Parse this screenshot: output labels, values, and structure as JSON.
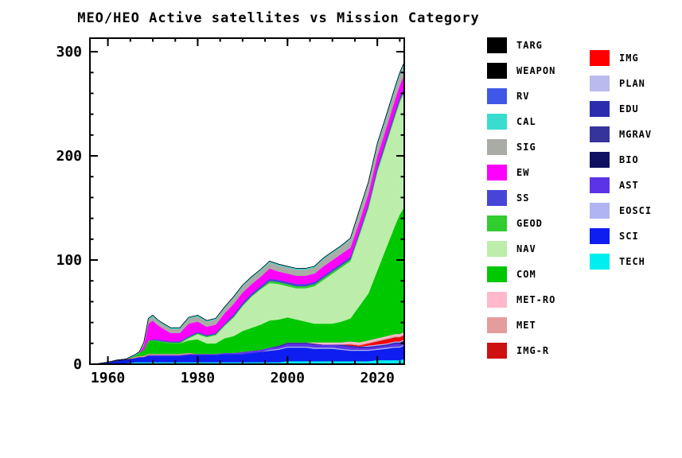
{
  "chart_data": {
    "type": "area",
    "stacked": true,
    "title": "MEO/HEO Active satellites vs Mission Category",
    "xlabel": "",
    "ylabel": "",
    "xlim": [
      1956,
      2026
    ],
    "ylim": [
      0,
      313
    ],
    "xticks": [
      1960,
      1980,
      2000,
      2020
    ],
    "xminor": 5,
    "yticks": [
      0,
      100,
      200,
      300
    ],
    "yminor": 20,
    "grid": false,
    "legend_position": "right",
    "x": [
      1957,
      1960,
      1962,
      1964,
      1966,
      1967,
      1968,
      1969,
      1970,
      1971,
      1972,
      1974,
      1976,
      1978,
      1980,
      1982,
      1984,
      1986,
      1988,
      1990,
      1992,
      1994,
      1996,
      1998,
      2000,
      2002,
      2004,
      2006,
      2008,
      2010,
      2012,
      2014,
      2016,
      2018,
      2020,
      2022,
      2024,
      2025,
      2026
    ],
    "series": [
      {
        "name": "TECH",
        "color": "#00eeee",
        "values": [
          0,
          1,
          1,
          1,
          2,
          2,
          2,
          2,
          2,
          2,
          2,
          2,
          2,
          2,
          2,
          2,
          2,
          2,
          2,
          2,
          2,
          2,
          2,
          2,
          3,
          3,
          3,
          3,
          3,
          3,
          3,
          3,
          3,
          3,
          4,
          4,
          4,
          4,
          5
        ]
      },
      {
        "name": "SCI",
        "color": "#0e1ef0",
        "values": [
          0,
          1,
          2,
          3,
          4,
          5,
          5,
          6,
          6,
          6,
          6,
          6,
          6,
          7,
          7,
          7,
          7,
          8,
          8,
          8,
          9,
          10,
          11,
          12,
          13,
          13,
          13,
          12,
          12,
          12,
          11,
          10,
          10,
          10,
          10,
          11,
          12,
          12,
          13
        ]
      },
      {
        "name": "EOSCI",
        "color": "#b0b4f2",
        "values": [
          0,
          0,
          0,
          0,
          0,
          0,
          0,
          0,
          0,
          0,
          0,
          0,
          0,
          0,
          0,
          0,
          0,
          0,
          0,
          0,
          0,
          0,
          1,
          1,
          1,
          1,
          1,
          1,
          1,
          1,
          1,
          1,
          1,
          1,
          1,
          1,
          1,
          1,
          1
        ]
      },
      {
        "name": "AST",
        "color": "#5c33e6",
        "values": [
          0,
          0,
          0,
          0,
          0,
          0,
          0,
          1,
          1,
          1,
          1,
          1,
          1,
          1,
          1,
          1,
          1,
          1,
          1,
          2,
          2,
          2,
          2,
          2,
          3,
          3,
          3,
          3,
          3,
          3,
          3,
          3,
          2,
          2,
          2,
          2,
          3,
          3,
          3
        ]
      },
      {
        "name": "BIO",
        "color": "#101060",
        "values": [
          0,
          0,
          1,
          1,
          0,
          0,
          0,
          0,
          0,
          0,
          0,
          0,
          0,
          0,
          0,
          0,
          0,
          0,
          0,
          0,
          0,
          0,
          0,
          0,
          0,
          0,
          0,
          0,
          0,
          0,
          0,
          0,
          0,
          0,
          0,
          0,
          0,
          0,
          0
        ]
      },
      {
        "name": "MGRAV",
        "color": "#34349c",
        "values": [
          0,
          0,
          0,
          0,
          0,
          0,
          0,
          0,
          0,
          0,
          0,
          0,
          0,
          0,
          0,
          0,
          0,
          0,
          0,
          0,
          0,
          0,
          0,
          1,
          1,
          1,
          1,
          1,
          0,
          0,
          0,
          0,
          0,
          0,
          0,
          0,
          0,
          0,
          0
        ]
      },
      {
        "name": "EDU",
        "color": "#2c2cae",
        "values": [
          0,
          0,
          0,
          0,
          0,
          0,
          0,
          0,
          0,
          0,
          0,
          0,
          0,
          0,
          0,
          0,
          0,
          0,
          0,
          0,
          0,
          0,
          0,
          0,
          0,
          0,
          0,
          0,
          0,
          0,
          1,
          1,
          1,
          1,
          1,
          1,
          1,
          1,
          1
        ]
      },
      {
        "name": "PLAN",
        "color": "#babaee",
        "values": [
          0,
          0,
          0,
          0,
          0,
          0,
          0,
          0,
          0,
          0,
          0,
          0,
          0,
          0,
          0,
          0,
          0,
          0,
          0,
          0,
          0,
          0,
          0,
          0,
          0,
          0,
          0,
          0,
          0,
          0,
          0,
          0,
          0,
          1,
          1,
          1,
          1,
          1,
          1
        ]
      },
      {
        "name": "IMG",
        "color": "#ff0000",
        "values": [
          0,
          0,
          0,
          0,
          0,
          0,
          0,
          0,
          0,
          0,
          0,
          0,
          0,
          0,
          0,
          0,
          0,
          0,
          0,
          0,
          0,
          0,
          0,
          0,
          0,
          0,
          0,
          0,
          0,
          0,
          0,
          1,
          1,
          2,
          2,
          3,
          3,
          3,
          3
        ]
      },
      {
        "name": "IMG-R",
        "color": "#cf1010",
        "values": [
          0,
          0,
          0,
          0,
          0,
          0,
          0,
          0,
          0,
          0,
          0,
          0,
          0,
          0,
          0,
          0,
          0,
          0,
          0,
          0,
          0,
          0,
          0,
          0,
          0,
          0,
          0,
          0,
          0,
          0,
          0,
          0,
          0,
          0,
          1,
          1,
          1,
          1,
          1
        ]
      },
      {
        "name": "MET",
        "color": "#e49c9c",
        "values": [
          0,
          0,
          0,
          0,
          1,
          1,
          1,
          1,
          1,
          1,
          1,
          1,
          1,
          1,
          0,
          0,
          0,
          0,
          0,
          0,
          0,
          0,
          0,
          0,
          0,
          0,
          0,
          0,
          0,
          0,
          0,
          1,
          1,
          1,
          1,
          1,
          1,
          1,
          1
        ]
      },
      {
        "name": "MET-RO",
        "color": "#ffb8cc",
        "values": [
          0,
          0,
          0,
          0,
          0,
          0,
          0,
          0,
          0,
          0,
          0,
          0,
          0,
          0,
          0,
          0,
          0,
          0,
          0,
          0,
          0,
          0,
          0,
          0,
          0,
          0,
          0,
          1,
          2,
          2,
          2,
          2,
          2,
          2,
          2,
          2,
          2,
          2,
          2
        ]
      },
      {
        "name": "COM",
        "color": "#00c800",
        "values": [
          0,
          0,
          0,
          0,
          1,
          3,
          6,
          12,
          12,
          12,
          11,
          10,
          10,
          12,
          14,
          10,
          10,
          14,
          16,
          20,
          22,
          24,
          26,
          25,
          24,
          22,
          20,
          18,
          18,
          18,
          20,
          22,
          35,
          45,
          65,
          85,
          105,
          115,
          120
        ]
      },
      {
        "name": "NAV",
        "color": "#bcedaa",
        "values": [
          0,
          0,
          0,
          0,
          0,
          0,
          0,
          0,
          0,
          0,
          0,
          0,
          0,
          2,
          5,
          6,
          8,
          12,
          18,
          24,
          30,
          34,
          36,
          34,
          30,
          30,
          32,
          36,
          42,
          48,
          52,
          55,
          68,
          82,
          95,
          100,
          105,
          108,
          110
        ]
      },
      {
        "name": "GEOD",
        "color": "#30cc30",
        "values": [
          0,
          0,
          0,
          0,
          0,
          0,
          0,
          1,
          1,
          1,
          1,
          1,
          1,
          1,
          1,
          1,
          1,
          1,
          1,
          1,
          1,
          1,
          2,
          2,
          2,
          2,
          2,
          2,
          2,
          2,
          2,
          2,
          2,
          2,
          2,
          2,
          2,
          2,
          2
        ]
      },
      {
        "name": "SS",
        "color": "#4745d8",
        "values": [
          0,
          0,
          0,
          0,
          0,
          0,
          0,
          0,
          1,
          1,
          1,
          1,
          1,
          1,
          1,
          1,
          1,
          1,
          2,
          2,
          2,
          2,
          2,
          2,
          2,
          2,
          2,
          2,
          2,
          2,
          2,
          2,
          2,
          2,
          3,
          3,
          3,
          3,
          3
        ]
      },
      {
        "name": "EW",
        "color": "#ff00ff",
        "values": [
          0,
          0,
          0,
          0,
          0,
          0,
          4,
          16,
          18,
          14,
          12,
          8,
          8,
          12,
          10,
          8,
          8,
          10,
          10,
          10,
          9,
          9,
          10,
          8,
          8,
          8,
          8,
          8,
          9,
          9,
          9,
          9,
          9,
          10,
          10,
          10,
          11,
          11,
          12
        ]
      },
      {
        "name": "SIG",
        "color": "#a9aca6",
        "values": [
          0,
          0,
          0,
          0,
          0,
          0,
          2,
          4,
          4,
          4,
          4,
          4,
          4,
          5,
          5,
          5,
          5,
          5,
          6,
          6,
          6,
          6,
          6,
          6,
          6,
          6,
          6,
          6,
          7,
          7,
          7,
          8,
          10,
          10,
          10,
          10,
          10,
          10,
          10
        ]
      },
      {
        "name": "CAL",
        "color": "#38ddcf",
        "values": [
          0,
          0,
          0,
          0,
          1,
          1,
          1,
          1,
          1,
          1,
          1,
          1,
          1,
          1,
          1,
          1,
          1,
          1,
          1,
          1,
          1,
          1,
          1,
          1,
          1,
          1,
          1,
          1,
          1,
          1,
          1,
          1,
          1,
          1,
          2,
          2,
          2,
          2,
          2
        ]
      },
      {
        "name": "RV",
        "color": "#3f58e8",
        "values": [
          0,
          0,
          0,
          0,
          0,
          0,
          0,
          0,
          0,
          0,
          0,
          0,
          0,
          0,
          0,
          0,
          0,
          0,
          0,
          0,
          0,
          0,
          0,
          0,
          0,
          0,
          0,
          0,
          0,
          0,
          0,
          0,
          0,
          0,
          0,
          0,
          0,
          0,
          0
        ]
      },
      {
        "name": "WEAPON",
        "color": "#000000",
        "values": [
          0,
          0,
          0,
          0,
          0,
          0,
          0,
          0,
          0,
          0,
          0,
          0,
          0,
          0,
          0,
          0,
          0,
          0,
          0,
          0,
          0,
          0,
          0,
          0,
          0,
          0,
          0,
          0,
          0,
          0,
          0,
          0,
          0,
          0,
          0,
          0,
          0,
          0,
          0
        ]
      },
      {
        "name": "TARG",
        "color": "#000000",
        "values": [
          0,
          0,
          0,
          0,
          0,
          0,
          0,
          0,
          0,
          0,
          0,
          0,
          0,
          0,
          0,
          0,
          0,
          0,
          0,
          0,
          0,
          0,
          0,
          0,
          0,
          0,
          0,
          0,
          0,
          0,
          0,
          0,
          0,
          0,
          0,
          0,
          0,
          0,
          0
        ]
      }
    ],
    "legend": {
      "column1": [
        "TARG",
        "WEAPON",
        "RV",
        "CAL",
        "SIG",
        "EW",
        "SS",
        "GEOD",
        "NAV",
        "COM",
        "MET-RO",
        "MET",
        "IMG-R"
      ],
      "column2": [
        "IMG",
        "PLAN",
        "EDU",
        "MGRAV",
        "BIO",
        "AST",
        "EOSCI",
        "SCI",
        "TECH"
      ]
    }
  }
}
